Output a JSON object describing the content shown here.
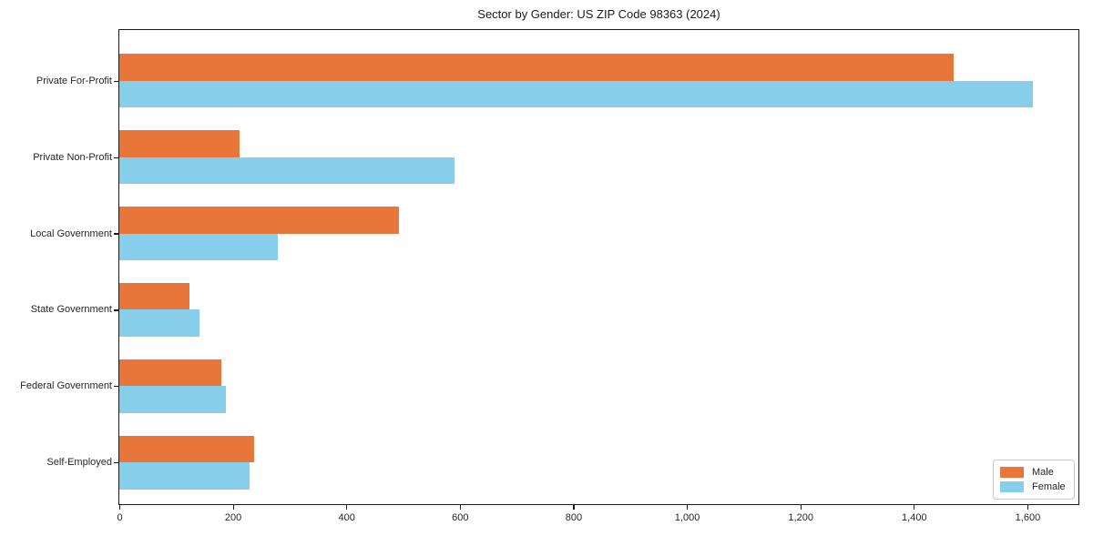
{
  "chart_data": {
    "type": "bar",
    "orientation": "horizontal",
    "title": "Sector by Gender: US ZIP Code 98363 (2024)",
    "categories": [
      "Private For-Profit",
      "Private Non-Profit",
      "Local Government",
      "State Government",
      "Federal Government",
      "Self-Employed"
    ],
    "series": [
      {
        "name": "Male",
        "color": "#e8763b",
        "values": [
          1470,
          212,
          492,
          123,
          180,
          238
        ]
      },
      {
        "name": "Female",
        "color": "#87ceeb",
        "values": [
          1610,
          590,
          279,
          141,
          188,
          230
        ]
      }
    ],
    "xlabel": "",
    "ylabel": "",
    "xlim": [
      0,
      1690
    ],
    "xticks": {
      "values": [
        0,
        200,
        400,
        600,
        800,
        1000,
        1200,
        1400,
        1600
      ],
      "labels": [
        "0",
        "200",
        "400",
        "600",
        "800",
        "1,000",
        "1,200",
        "1,400",
        "1,600"
      ]
    },
    "grid": false,
    "legend": {
      "position": "lower right",
      "entries": [
        "Male",
        "Female"
      ]
    }
  },
  "styles": {
    "male_color": "#e8763b",
    "female_color": "#87ceeb",
    "text_color": "#262626",
    "spine_color": "#1a1a1a",
    "legend_border": "#c8c8c8",
    "background": "#ffffff"
  }
}
